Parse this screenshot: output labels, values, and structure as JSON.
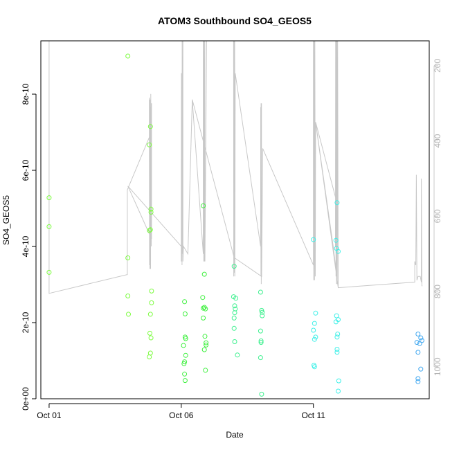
{
  "chart_data": {
    "type": "scatter",
    "title": "ATOM3 Southbound SO4_GEOS5",
    "xlabel": "Date",
    "ylabel": "SO4_GEOS5",
    "xlim": [
      "2016-09-30T16:30",
      "2016-10-15T09:10"
    ],
    "ylim": [
      0,
      9.4e-10
    ],
    "xticks": [
      {
        "x": "2016-10-01T00:00",
        "label": "Oct 01"
      },
      {
        "x": "2016-10-06T00:00",
        "label": "Oct 06"
      },
      {
        "x": "2016-10-11T00:00",
        "label": "Oct 11"
      }
    ],
    "yticks": [
      {
        "y": 0,
        "label": "0e+00"
      },
      {
        "y": 2e-10,
        "label": "2e-10"
      },
      {
        "y": 4e-10,
        "label": "4e-10"
      },
      {
        "y": 6e-10,
        "label": "6e-10"
      },
      {
        "y": 8e-10,
        "label": "8e-10"
      }
    ],
    "right_axis": {
      "reversed": true,
      "lim": [
        134,
        1085
      ],
      "ticks": [
        {
          "y": 200,
          "label": "200"
        },
        {
          "y": 400,
          "label": "400"
        },
        {
          "y": 600,
          "label": "600"
        },
        {
          "y": 800,
          "label": "800"
        },
        {
          "y": 1000,
          "label": "1000"
        }
      ]
    },
    "series": [
      {
        "color": "#7cfc3f",
        "points": [
          [
            "2016-10-01T00:00",
            5.28e-10
          ],
          [
            "2016-10-01T00:00",
            4.52e-10
          ],
          [
            "2016-10-01T00:00",
            3.32e-10
          ],
          [
            "2016-10-03T23:30",
            9e-10
          ],
          [
            "2016-10-03T23:30",
            3.7e-10
          ],
          [
            "2016-10-03T23:30",
            2.7e-10
          ],
          [
            "2016-10-04T00:00",
            2.22e-10
          ],
          [
            "2016-10-04T19:00",
            6.67e-10
          ],
          [
            "2016-10-04T19:00",
            4.42e-10
          ],
          [
            "2016-10-04T20:00",
            7.15e-10
          ],
          [
            "2016-10-04T20:30",
            4.98e-10
          ],
          [
            "2016-10-04T20:30",
            4.9e-10
          ],
          [
            "2016-10-04T20:00",
            4.44e-10
          ],
          [
            "2016-10-04T21:00",
            2.83e-10
          ],
          [
            "2016-10-04T21:00",
            2.52e-10
          ],
          [
            "2016-10-04T20:00",
            2.22e-10
          ],
          [
            "2016-10-04T19:30",
            1.72e-10
          ],
          [
            "2016-10-04T20:30",
            1.6e-10
          ],
          [
            "2016-10-04T20:00",
            1.2e-10
          ],
          [
            "2016-10-04T19:00",
            1.1e-10
          ]
        ]
      },
      {
        "color": "#3ef03e",
        "points": [
          [
            "2016-10-06T03:00",
            2.55e-10
          ],
          [
            "2016-10-06T03:30",
            2.23e-10
          ],
          [
            "2016-10-06T03:30",
            1.62e-10
          ],
          [
            "2016-10-06T04:00",
            1.58e-10
          ],
          [
            "2016-10-06T02:00",
            1.4e-10
          ],
          [
            "2016-10-06T04:00",
            1.14e-10
          ],
          [
            "2016-10-06T03:00",
            9.7e-11
          ],
          [
            "2016-10-06T02:30",
            9.2e-11
          ],
          [
            "2016-10-06T03:00",
            6.5e-11
          ],
          [
            "2016-10-06T03:30",
            4.8e-11
          ],
          [
            "2016-10-06T20:00",
            5.07e-10
          ],
          [
            "2016-10-06T21:00",
            3.27e-10
          ],
          [
            "2016-10-06T19:30",
            2.66e-10
          ],
          [
            "2016-10-06T20:00",
            2.38e-10
          ],
          [
            "2016-10-06T21:00",
            2.4e-10
          ],
          [
            "2016-10-06T22:00",
            2.36e-10
          ],
          [
            "2016-10-06T20:00",
            2.12e-10
          ],
          [
            "2016-10-06T21:30",
            1.64e-10
          ],
          [
            "2016-10-06T22:30",
            1.47e-10
          ],
          [
            "2016-10-06T22:30",
            1.41e-10
          ],
          [
            "2016-10-06T21:00",
            1.29e-10
          ],
          [
            "2016-10-06T22:00",
            7.5e-11
          ]
        ]
      },
      {
        "color": "#3ef08f",
        "points": [
          [
            "2016-10-08T00:00",
            3.48e-10
          ],
          [
            "2016-10-07T23:30",
            2.68e-10
          ],
          [
            "2016-10-08T01:30",
            2.64e-10
          ],
          [
            "2016-10-08T00:30",
            2.44e-10
          ],
          [
            "2016-10-08T01:00",
            2.36e-10
          ],
          [
            "2016-10-08T00:30",
            2.26e-10
          ],
          [
            "2016-10-08T00:00",
            2.12e-10
          ],
          [
            "2016-10-08T00:00",
            1.85e-10
          ],
          [
            "2016-10-08T00:30",
            1.5e-10
          ],
          [
            "2016-10-08T03:00",
            1.15e-10
          ],
          [
            "2016-10-09T00:00",
            2.8e-10
          ],
          [
            "2016-10-09T01:00",
            2.32e-10
          ],
          [
            "2016-10-09T01:30",
            2.27e-10
          ],
          [
            "2016-10-09T01:30",
            2.18e-10
          ],
          [
            "2016-10-09T00:00",
            1.78e-10
          ],
          [
            "2016-10-09T00:30",
            1.52e-10
          ],
          [
            "2016-10-09T00:30",
            1.48e-10
          ],
          [
            "2016-10-09T00:00",
            1.08e-10
          ],
          [
            "2016-10-09T01:00",
            1.2e-11
          ]
        ]
      },
      {
        "color": "#3ef0e8",
        "points": [
          [
            "2016-10-11T00:00",
            4.18e-10
          ],
          [
            "2016-10-11T02:00",
            2.25e-10
          ],
          [
            "2016-10-11T01:00",
            1.98e-10
          ],
          [
            "2016-10-11T00:00",
            1.8e-10
          ],
          [
            "2016-10-11T02:00",
            1.62e-10
          ],
          [
            "2016-10-11T01:00",
            1.56e-10
          ],
          [
            "2016-10-11T00:30",
            8.8e-11
          ],
          [
            "2016-10-11T01:00",
            8.4e-11
          ],
          [
            "2016-10-11T21:30",
            5.15e-10
          ],
          [
            "2016-10-11T20:30",
            4.16e-10
          ],
          [
            "2016-10-11T21:00",
            3.95e-10
          ],
          [
            "2016-10-11T22:30",
            3.87e-10
          ],
          [
            "2016-10-11T21:00",
            2.18e-10
          ],
          [
            "2016-10-11T22:30",
            2.08e-10
          ],
          [
            "2016-10-11T20:30",
            2.02e-10
          ],
          [
            "2016-10-11T22:00",
            1.7e-10
          ],
          [
            "2016-10-11T21:30",
            1.62e-10
          ],
          [
            "2016-10-11T21:30",
            1.3e-10
          ],
          [
            "2016-10-11T21:30",
            1.22e-10
          ],
          [
            "2016-10-11T23:00",
            4.7e-11
          ],
          [
            "2016-10-11T22:30",
            2e-11
          ]
        ]
      },
      {
        "color": "#3fa7f0",
        "points": [
          [
            "2016-10-14T23:00",
            1.7e-10
          ],
          [
            "2016-10-15T01:30",
            1.6e-10
          ],
          [
            "2016-10-15T02:30",
            1.53e-10
          ],
          [
            "2016-10-14T22:00",
            1.48e-10
          ],
          [
            "2016-10-15T00:30",
            1.45e-10
          ],
          [
            "2016-10-14T23:00",
            1.22e-10
          ],
          [
            "2016-10-15T01:30",
            7.8e-11
          ],
          [
            "2016-10-14T23:00",
            5.3e-11
          ],
          [
            "2016-10-14T23:00",
            4.5e-11
          ]
        ]
      }
    ],
    "flight_track": {
      "color": "#c8c8c8",
      "axis": "right",
      "points": [
        [
          "2016-10-01T00:00",
          134
        ],
        [
          "2016-10-01T00:00",
          805
        ],
        [
          "2016-10-03T23:00",
          755
        ],
        [
          "2016-10-03T23:00",
          530
        ],
        [
          "2016-10-04T19:00",
          390
        ],
        [
          "2016-10-04T19:00",
          285
        ],
        [
          "2016-10-04T19:10",
          730
        ],
        [
          "2016-10-04T19:20",
          310
        ],
        [
          "2016-10-04T19:30",
          740
        ],
        [
          "2016-10-04T19:40",
          290
        ],
        [
          "2016-10-04T19:50",
          740
        ],
        [
          "2016-10-04T20:00",
          310
        ],
        [
          "2016-10-04T20:10",
          740
        ],
        [
          "2016-10-04T20:20",
          275
        ],
        [
          "2016-10-04T20:30",
          660
        ],
        [
          "2016-10-04T20:40",
          300
        ],
        [
          "2016-10-04T20:50",
          680
        ],
        [
          "2016-10-04T20:50",
          470
        ],
        [
          "2016-10-04T21:00",
          300
        ],
        [
          "2016-10-04T21:00",
          660
        ],
        [
          "2016-10-03T23:30",
          520
        ],
        [
          "2016-10-06T00:00",
          680
        ],
        [
          "2016-10-06T00:00",
          720
        ],
        [
          "2016-10-06T00:10",
          220
        ],
        [
          "2016-10-06T00:20",
          700
        ],
        [
          "2016-10-06T00:30",
          230
        ],
        [
          "2016-10-06T00:40",
          730
        ],
        [
          "2016-10-06T00:50",
          134
        ],
        [
          "2016-10-06T01:00",
          700
        ],
        [
          "2016-10-06T01:30",
          134
        ],
        [
          "2016-10-06T01:30",
          720
        ],
        [
          "2016-10-06T02:00",
          680
        ],
        [
          "2016-10-06T06:00",
          700
        ],
        [
          "2016-10-06T07:00",
          600
        ],
        [
          "2016-10-06T10:00",
          290
        ],
        [
          "2016-10-06T20:00",
          700
        ],
        [
          "2016-10-06T20:00",
          134
        ],
        [
          "2016-10-06T20:30",
          720
        ],
        [
          "2016-10-06T20:40",
          134
        ],
        [
          "2016-10-06T21:00",
          720
        ],
        [
          "2016-10-06T21:20",
          134
        ],
        [
          "2016-10-06T21:30",
          720
        ],
        [
          "2016-10-06T23:00",
          134
        ],
        [
          "2016-10-07T12:00",
          134
        ],
        [
          "2016-10-07T18:00",
          134
        ],
        [
          "2016-10-07T23:30",
          134
        ],
        [
          "2016-10-07T23:40",
          760
        ],
        [
          "2016-10-07T23:50",
          134
        ],
        [
          "2016-10-08T00:00",
          750
        ],
        [
          "2016-10-08T00:10",
          134
        ],
        [
          "2016-10-08T00:20",
          740
        ],
        [
          "2016-10-08T00:30",
          134
        ],
        [
          "2016-10-08T00:40",
          760
        ],
        [
          "2016-10-08T01:00",
          220
        ],
        [
          "2016-10-09T00:00",
          680
        ],
        [
          "2016-10-09T00:10",
          310
        ],
        [
          "2016-10-09T00:20",
          760
        ],
        [
          "2016-10-09T00:30",
          300
        ],
        [
          "2016-10-09T00:40",
          780
        ],
        [
          "2016-10-09T00:50",
          300
        ],
        [
          "2016-10-09T01:00",
          760
        ],
        [
          "2016-10-08T00:00",
          710
        ],
        [
          "2016-10-06T10:00",
          290
        ],
        [
          "2016-10-08T00:00",
          710
        ],
        [
          "2016-10-09T01:00",
          760
        ],
        [
          "2016-10-09T02:00",
          420
        ],
        [
          "2016-10-11T00:00",
          730
        ],
        [
          "2016-10-11T00:00",
          134
        ],
        [
          "2016-10-11T00:20",
          770
        ],
        [
          "2016-10-11T00:40",
          134
        ],
        [
          "2016-10-11T01:00",
          770
        ],
        [
          "2016-10-11T01:20",
          134
        ],
        [
          "2016-10-11T01:40",
          760
        ],
        [
          "2016-10-11T02:00",
          350
        ],
        [
          "2016-10-11T21:00",
          560
        ],
        [
          "2016-10-11T22:00",
          600
        ],
        [
          "2016-10-11T20:00",
          680
        ],
        [
          "2016-10-11T20:10",
          134
        ],
        [
          "2016-10-11T20:30",
          760
        ],
        [
          "2016-10-11T20:40",
          134
        ],
        [
          "2016-10-11T21:00",
          780
        ],
        [
          "2016-10-11T21:20",
          134
        ],
        [
          "2016-10-11T21:40",
          780
        ],
        [
          "2016-10-11T22:00",
          134
        ],
        [
          "2016-10-11T22:30",
          790
        ],
        [
          "2016-10-11T02:00",
          350
        ],
        [
          "2016-10-11T18:00",
          680
        ],
        [
          "2016-10-11T22:30",
          790
        ],
        [
          "2016-10-14T20:00",
          775
        ],
        [
          "2016-10-14T20:00",
          720
        ],
        [
          "2016-10-14T21:00",
          730
        ],
        [
          "2016-10-14T21:30",
          490
        ],
        [
          "2016-10-14T22:00",
          770
        ],
        [
          "2016-10-14T23:00",
          760
        ],
        [
          "2016-10-15T01:00",
          760
        ],
        [
          "2016-10-15T02:00",
          775
        ],
        [
          "2016-10-15T02:00",
          500
        ],
        [
          "2016-10-15T02:30",
          785
        ],
        [
          "2016-10-15T03:00",
          785
        ]
      ]
    }
  }
}
